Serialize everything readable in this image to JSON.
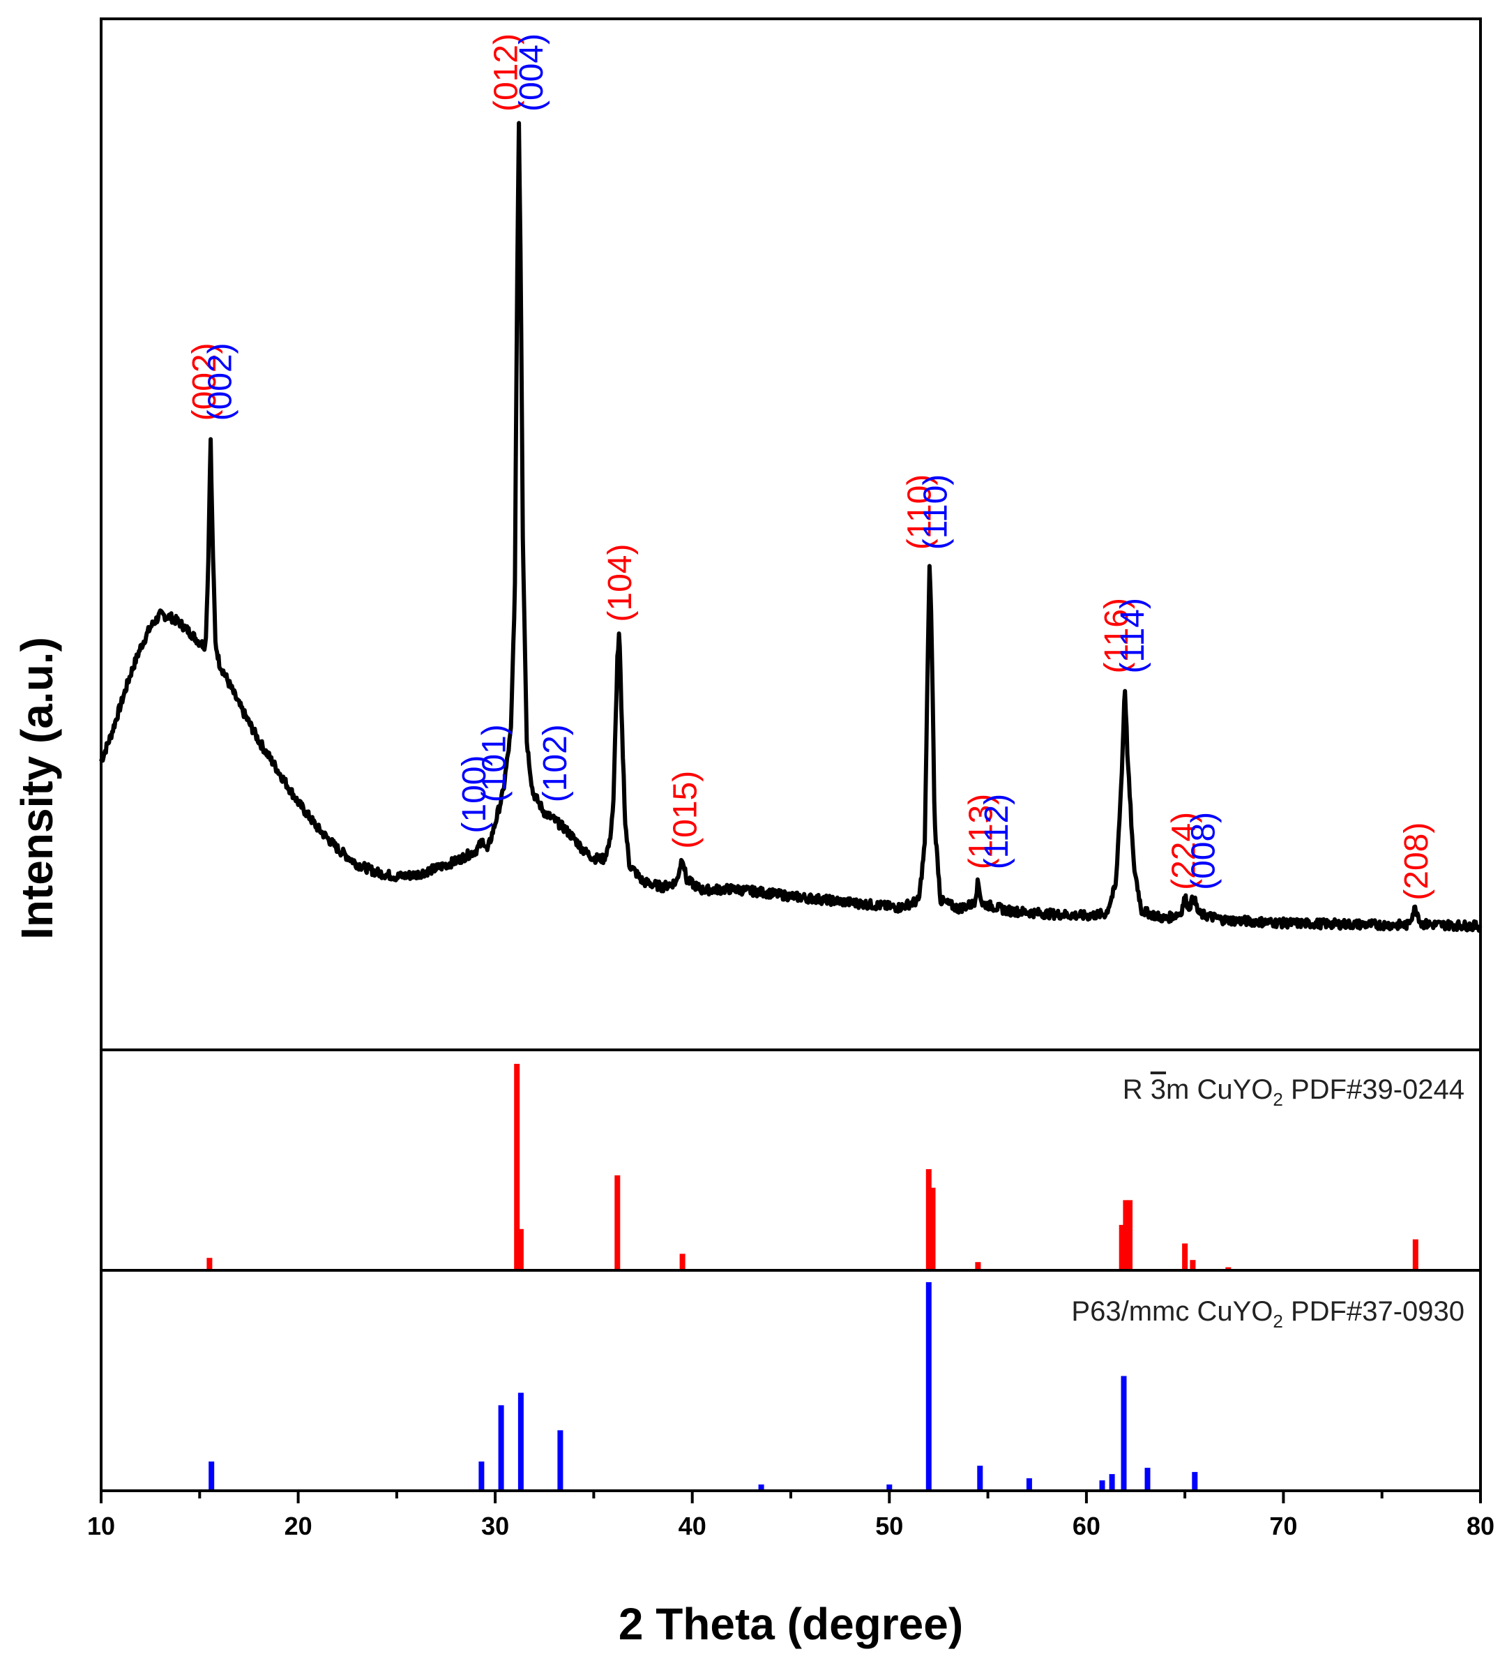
{
  "chart_data": {
    "type": "line",
    "xlabel": "2 Theta (degree)",
    "ylabel": "Intensity (a.u.)",
    "xlim": [
      10,
      80
    ],
    "x_ticks": [
      "10",
      "20",
      "30",
      "40",
      "50",
      "60",
      "70",
      "80"
    ],
    "colors": {
      "pattern": "#000000",
      "rhombo": "#ff0000",
      "hex": "#0000ff"
    },
    "xrd": {
      "name": "Intensity (a.u.)",
      "ylim": [
        0,
        100
      ],
      "points": [
        [
          10.0,
          28
        ],
        [
          10.5,
          30.5
        ],
        [
          11.0,
          33.5
        ],
        [
          11.5,
          36.5
        ],
        [
          12.0,
          39
        ],
        [
          12.5,
          41
        ],
        [
          13.0,
          42.2
        ],
        [
          13.5,
          42
        ],
        [
          14.0,
          41.4
        ],
        [
          14.5,
          40.5
        ],
        [
          15.0,
          39.5
        ],
        [
          15.3,
          39.2
        ],
        [
          15.45,
          48
        ],
        [
          15.55,
          60
        ],
        [
          15.65,
          50
        ],
        [
          15.8,
          39.5
        ],
        [
          16.0,
          37.5
        ],
        [
          17.0,
          33.5
        ],
        [
          18.0,
          30
        ],
        [
          19.0,
          27
        ],
        [
          20.0,
          24
        ],
        [
          21.0,
          21.5
        ],
        [
          22.0,
          19.5
        ],
        [
          23.0,
          18
        ],
        [
          24.0,
          17.2
        ],
        [
          25.0,
          16.8
        ],
        [
          26.0,
          17
        ],
        [
          27.0,
          17.6
        ],
        [
          28.0,
          18.3
        ],
        [
          29.0,
          19.3
        ],
        [
          29.4,
          20.3
        ],
        [
          29.6,
          19.3
        ],
        [
          30.0,
          22
        ],
        [
          30.4,
          25
        ],
        [
          30.8,
          31
        ],
        [
          31.0,
          45
        ],
        [
          31.1,
          72
        ],
        [
          31.2,
          90
        ],
        [
          31.3,
          75
        ],
        [
          31.4,
          50
        ],
        [
          31.6,
          30
        ],
        [
          31.9,
          25
        ],
        [
          32.5,
          23
        ],
        [
          33.0,
          22.3
        ],
        [
          33.5,
          21.5
        ],
        [
          34.0,
          20.5
        ],
        [
          34.5,
          19.3
        ],
        [
          35.0,
          18.6
        ],
        [
          35.5,
          18.5
        ],
        [
          35.8,
          20
        ],
        [
          36.0,
          24
        ],
        [
          36.2,
          38
        ],
        [
          36.3,
          40.5
        ],
        [
          36.4,
          33
        ],
        [
          36.6,
          22
        ],
        [
          36.8,
          18
        ],
        [
          37.5,
          16.3
        ],
        [
          38.5,
          15.8
        ],
        [
          39.2,
          16.3
        ],
        [
          39.5,
          18.8
        ],
        [
          39.7,
          16.5
        ],
        [
          40.5,
          15.5
        ],
        [
          42.0,
          15.6
        ],
        [
          43.5,
          15.3
        ],
        [
          45.0,
          14.9
        ],
        [
          47.0,
          14.5
        ],
        [
          49.0,
          14.1
        ],
        [
          50.5,
          13.8
        ],
        [
          51.5,
          14.5
        ],
        [
          51.8,
          20
        ],
        [
          51.95,
          38
        ],
        [
          52.05,
          47.5
        ],
        [
          52.15,
          40
        ],
        [
          52.3,
          22
        ],
        [
          52.6,
          14.5
        ],
        [
          53.5,
          13.7
        ],
        [
          54.3,
          14.2
        ],
        [
          54.5,
          16.3
        ],
        [
          54.7,
          14.2
        ],
        [
          56.0,
          13.5
        ],
        [
          58.0,
          13.2
        ],
        [
          60.0,
          13
        ],
        [
          61.0,
          13.2
        ],
        [
          61.5,
          16
        ],
        [
          61.8,
          27
        ],
        [
          61.95,
          35.5
        ],
        [
          62.1,
          28
        ],
        [
          62.4,
          18
        ],
        [
          62.8,
          13.5
        ],
        [
          64.0,
          12.7
        ],
        [
          64.8,
          13.3
        ],
        [
          65.0,
          14.8
        ],
        [
          65.2,
          13.8
        ],
        [
          65.45,
          14.8
        ],
        [
          65.7,
          13.2
        ],
        [
          67.0,
          12.6
        ],
        [
          70.0,
          12.3
        ],
        [
          73.0,
          12.2
        ],
        [
          76.3,
          12.1
        ],
        [
          76.7,
          13.8
        ],
        [
          77.0,
          12.2
        ],
        [
          80.0,
          12
        ]
      ]
    },
    "annotations": [
      {
        "text": "(002)",
        "x": 15.2,
        "y": 61,
        "color": "#ff0000"
      },
      {
        "text": "(002)",
        "x": 16.0,
        "y": 61,
        "color": "#0000ff"
      },
      {
        "text": "(100)",
        "x": 28.9,
        "y": 21,
        "color": "#0000ff"
      },
      {
        "text": "(101)",
        "x": 29.9,
        "y": 24,
        "color": "#0000ff"
      },
      {
        "text": "(012)",
        "x": 30.5,
        "y": 91,
        "color": "#ff0000"
      },
      {
        "text": "(004)",
        "x": 31.8,
        "y": 91,
        "color": "#0000ff"
      },
      {
        "text": "(102)",
        "x": 33.0,
        "y": 24,
        "color": "#0000ff"
      },
      {
        "text": "(104)",
        "x": 36.3,
        "y": 41.5,
        "color": "#ff0000"
      },
      {
        "text": "(015)",
        "x": 39.6,
        "y": 19.5,
        "color": "#ff0000"
      },
      {
        "text": "(110)",
        "x": 51.5,
        "y": 48.5,
        "color": "#ff0000"
      },
      {
        "text": "(110)",
        "x": 52.3,
        "y": 48.5,
        "color": "#0000ff"
      },
      {
        "text": "(113)",
        "x": 54.6,
        "y": 17.5,
        "color": "#ff0000"
      },
      {
        "text": "(112)",
        "x": 55.4,
        "y": 17.5,
        "color": "#0000ff"
      },
      {
        "text": "(116)",
        "x": 61.5,
        "y": 36.5,
        "color": "#ff0000"
      },
      {
        "text": "(114)",
        "x": 62.3,
        "y": 36.5,
        "color": "#0000ff"
      },
      {
        "text": "(224)",
        "x": 64.9,
        "y": 15.5,
        "color": "#ff0000"
      },
      {
        "text": "(008)",
        "x": 65.9,
        "y": 15.5,
        "color": "#0000ff"
      },
      {
        "text": "(208)",
        "x": 76.7,
        "y": 14.5,
        "color": "#ff0000"
      }
    ],
    "references": [
      {
        "name": "R 3m CuYO2 PDF#39-0244",
        "label_prefix": "R ",
        "label_bar_digit": "3",
        "label_mid": "m CuYO",
        "label_sub": "2",
        "label_suffix": " PDF#39-0244",
        "color": "#ff0000",
        "peaks": [
          {
            "x": 15.5,
            "intensity": 6
          },
          {
            "x": 31.1,
            "intensity": 100
          },
          {
            "x": 31.3,
            "intensity": 20
          },
          {
            "x": 36.2,
            "intensity": 46
          },
          {
            "x": 39.5,
            "intensity": 8
          },
          {
            "x": 52.0,
            "intensity": 49
          },
          {
            "x": 52.2,
            "intensity": 40
          },
          {
            "x": 54.5,
            "intensity": 4
          },
          {
            "x": 61.8,
            "intensity": 22
          },
          {
            "x": 62.0,
            "intensity": 34
          },
          {
            "x": 62.2,
            "intensity": 34
          },
          {
            "x": 65.0,
            "intensity": 13
          },
          {
            "x": 65.4,
            "intensity": 5
          },
          {
            "x": 67.2,
            "intensity": 1.5
          },
          {
            "x": 76.7,
            "intensity": 15
          }
        ]
      },
      {
        "name": "P63/mmc CuYO2 PDF#37-0930",
        "label_prefix": "P63/mmc CuYO",
        "label_sub": "2",
        "label_suffix": " PDF#37-0930",
        "color": "#0000ff",
        "peaks": [
          {
            "x": 15.6,
            "intensity": 14
          },
          {
            "x": 29.3,
            "intensity": 14
          },
          {
            "x": 30.3,
            "intensity": 41
          },
          {
            "x": 31.3,
            "intensity": 47
          },
          {
            "x": 33.3,
            "intensity": 29
          },
          {
            "x": 43.5,
            "intensity": 3
          },
          {
            "x": 50.0,
            "intensity": 3
          },
          {
            "x": 52.0,
            "intensity": 100
          },
          {
            "x": 54.6,
            "intensity": 12
          },
          {
            "x": 57.1,
            "intensity": 6
          },
          {
            "x": 60.8,
            "intensity": 5
          },
          {
            "x": 61.3,
            "intensity": 8
          },
          {
            "x": 61.9,
            "intensity": 55
          },
          {
            "x": 63.1,
            "intensity": 11
          },
          {
            "x": 65.5,
            "intensity": 9
          }
        ]
      }
    ]
  }
}
